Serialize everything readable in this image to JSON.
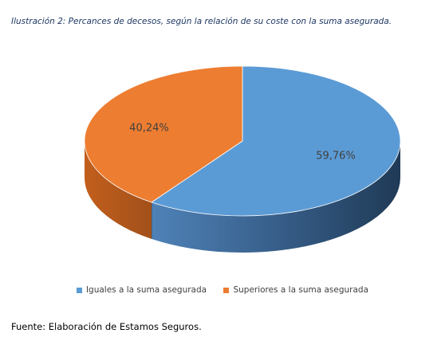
{
  "caption": "Ilustración 2: Percances de decesos, según la relación de su coste con la suma asegurada.",
  "source": "Fuente: Elaboración de Estamos Seguros.",
  "chart_data": {
    "type": "pie",
    "categories": [
      "Iguales a la suma asegurada",
      "Superiores a la suma asegurada"
    ],
    "values": [
      59.76,
      40.24
    ],
    "labels": [
      "59,76%",
      "40,24%"
    ],
    "colors": [
      "#5b9bd5",
      "#ed7d31"
    ],
    "legend_position": "bottom"
  }
}
